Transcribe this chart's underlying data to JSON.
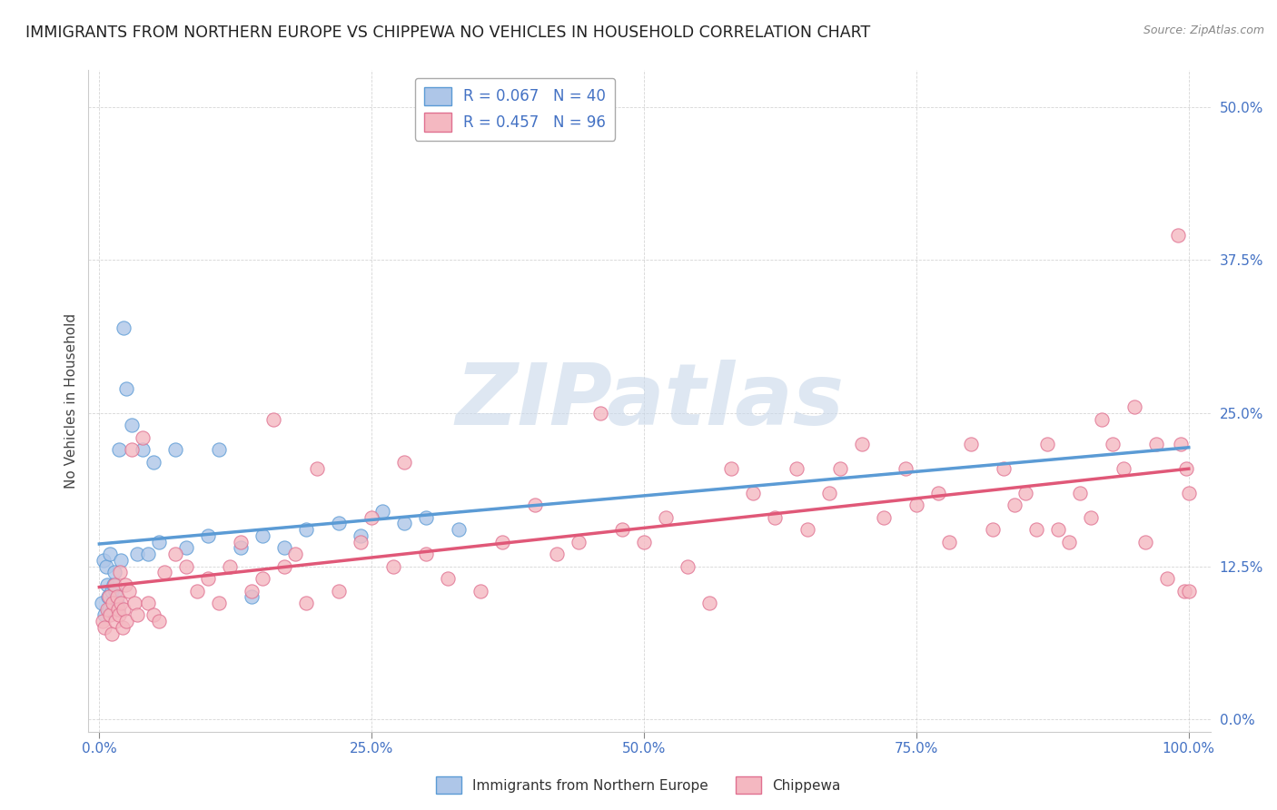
{
  "title": "IMMIGRANTS FROM NORTHERN EUROPE VS CHIPPEWA NO VEHICLES IN HOUSEHOLD CORRELATION CHART",
  "source": "Source: ZipAtlas.com",
  "ylabel": "No Vehicles in Household",
  "xlim": [
    0.0,
    100.0
  ],
  "ylim": [
    0.0,
    50.0
  ],
  "yticks": [
    0.0,
    12.5,
    25.0,
    37.5,
    50.0
  ],
  "xticks": [
    0.0,
    25.0,
    50.0,
    75.0,
    100.0
  ],
  "xtick_labels": [
    "0.0%",
    "25.0%",
    "50.0%",
    "75.0%",
    "100.0%"
  ],
  "ytick_labels": [
    "0.0%",
    "12.5%",
    "25.0%",
    "37.5%",
    "50.0%"
  ],
  "series1_label": "Immigrants from Northern Europe",
  "series1_R": "0.067",
  "series1_N": "40",
  "series1_color": "#aec6e8",
  "series1_edge_color": "#5b9bd5",
  "series2_label": "Chippewa",
  "series2_R": "0.457",
  "series2_N": "96",
  "series2_color": "#f4b8c1",
  "series2_edge_color": "#e07090",
  "line1_color": "#5b9bd5",
  "line2_color": "#e05878",
  "watermark": "ZIPatlas",
  "watermark_color": "#c8d8ea",
  "background_color": "#ffffff",
  "grid_color": "#bbbbbb",
  "tick_color": "#4472c4",
  "series1_x": [
    0.2,
    0.4,
    0.5,
    0.6,
    0.7,
    0.8,
    0.9,
    1.0,
    1.1,
    1.2,
    1.3,
    1.4,
    1.5,
    1.6,
    1.7,
    1.8,
    2.0,
    2.2,
    2.5,
    3.0,
    3.5,
    4.0,
    4.5,
    5.0,
    5.5,
    7.0,
    8.0,
    10.0,
    11.0,
    13.0,
    14.0,
    15.0,
    17.0,
    19.0,
    22.0,
    24.0,
    26.0,
    28.0,
    30.0,
    33.0
  ],
  "series1_y": [
    9.5,
    13.0,
    8.5,
    12.5,
    11.0,
    10.0,
    9.0,
    13.5,
    10.5,
    9.0,
    11.0,
    12.0,
    10.5,
    9.5,
    9.0,
    22.0,
    13.0,
    32.0,
    27.0,
    24.0,
    13.5,
    22.0,
    13.5,
    21.0,
    14.5,
    22.0,
    14.0,
    15.0,
    22.0,
    14.0,
    10.0,
    15.0,
    14.0,
    15.5,
    16.0,
    15.0,
    17.0,
    16.0,
    16.5,
    15.5
  ],
  "series2_x": [
    0.3,
    0.5,
    0.7,
    0.9,
    1.0,
    1.1,
    1.2,
    1.4,
    1.5,
    1.6,
    1.7,
    1.8,
    1.9,
    2.0,
    2.1,
    2.2,
    2.4,
    2.5,
    2.7,
    3.0,
    3.2,
    3.5,
    4.0,
    4.5,
    5.0,
    5.5,
    6.0,
    7.0,
    8.0,
    9.0,
    10.0,
    11.0,
    12.0,
    13.0,
    14.0,
    15.0,
    16.0,
    17.0,
    18.0,
    19.0,
    20.0,
    22.0,
    24.0,
    25.0,
    27.0,
    28.0,
    30.0,
    32.0,
    35.0,
    37.0,
    40.0,
    42.0,
    44.0,
    46.0,
    48.0,
    50.0,
    52.0,
    54.0,
    56.0,
    58.0,
    60.0,
    62.0,
    64.0,
    65.0,
    67.0,
    68.0,
    70.0,
    72.0,
    74.0,
    75.0,
    77.0,
    78.0,
    80.0,
    82.0,
    83.0,
    84.0,
    85.0,
    86.0,
    87.0,
    88.0,
    89.0,
    90.0,
    91.0,
    92.0,
    93.0,
    94.0,
    95.0,
    96.0,
    97.0,
    98.0,
    99.0,
    99.3,
    99.6,
    99.8,
    100.0,
    100.0
  ],
  "series2_y": [
    8.0,
    7.5,
    9.0,
    10.0,
    8.5,
    7.0,
    9.5,
    11.0,
    8.0,
    10.0,
    9.0,
    8.5,
    12.0,
    9.5,
    7.5,
    9.0,
    11.0,
    8.0,
    10.5,
    22.0,
    9.5,
    8.5,
    23.0,
    9.5,
    8.5,
    8.0,
    12.0,
    13.5,
    12.5,
    10.5,
    11.5,
    9.5,
    12.5,
    14.5,
    10.5,
    11.5,
    24.5,
    12.5,
    13.5,
    9.5,
    20.5,
    10.5,
    14.5,
    16.5,
    12.5,
    21.0,
    13.5,
    11.5,
    10.5,
    14.5,
    17.5,
    13.5,
    14.5,
    25.0,
    15.5,
    14.5,
    16.5,
    12.5,
    9.5,
    20.5,
    18.5,
    16.5,
    20.5,
    15.5,
    18.5,
    20.5,
    22.5,
    16.5,
    20.5,
    17.5,
    18.5,
    14.5,
    22.5,
    15.5,
    20.5,
    17.5,
    18.5,
    15.5,
    22.5,
    15.5,
    14.5,
    18.5,
    16.5,
    24.5,
    22.5,
    20.5,
    25.5,
    14.5,
    22.5,
    11.5,
    39.5,
    22.5,
    10.5,
    20.5,
    18.5,
    10.5
  ]
}
